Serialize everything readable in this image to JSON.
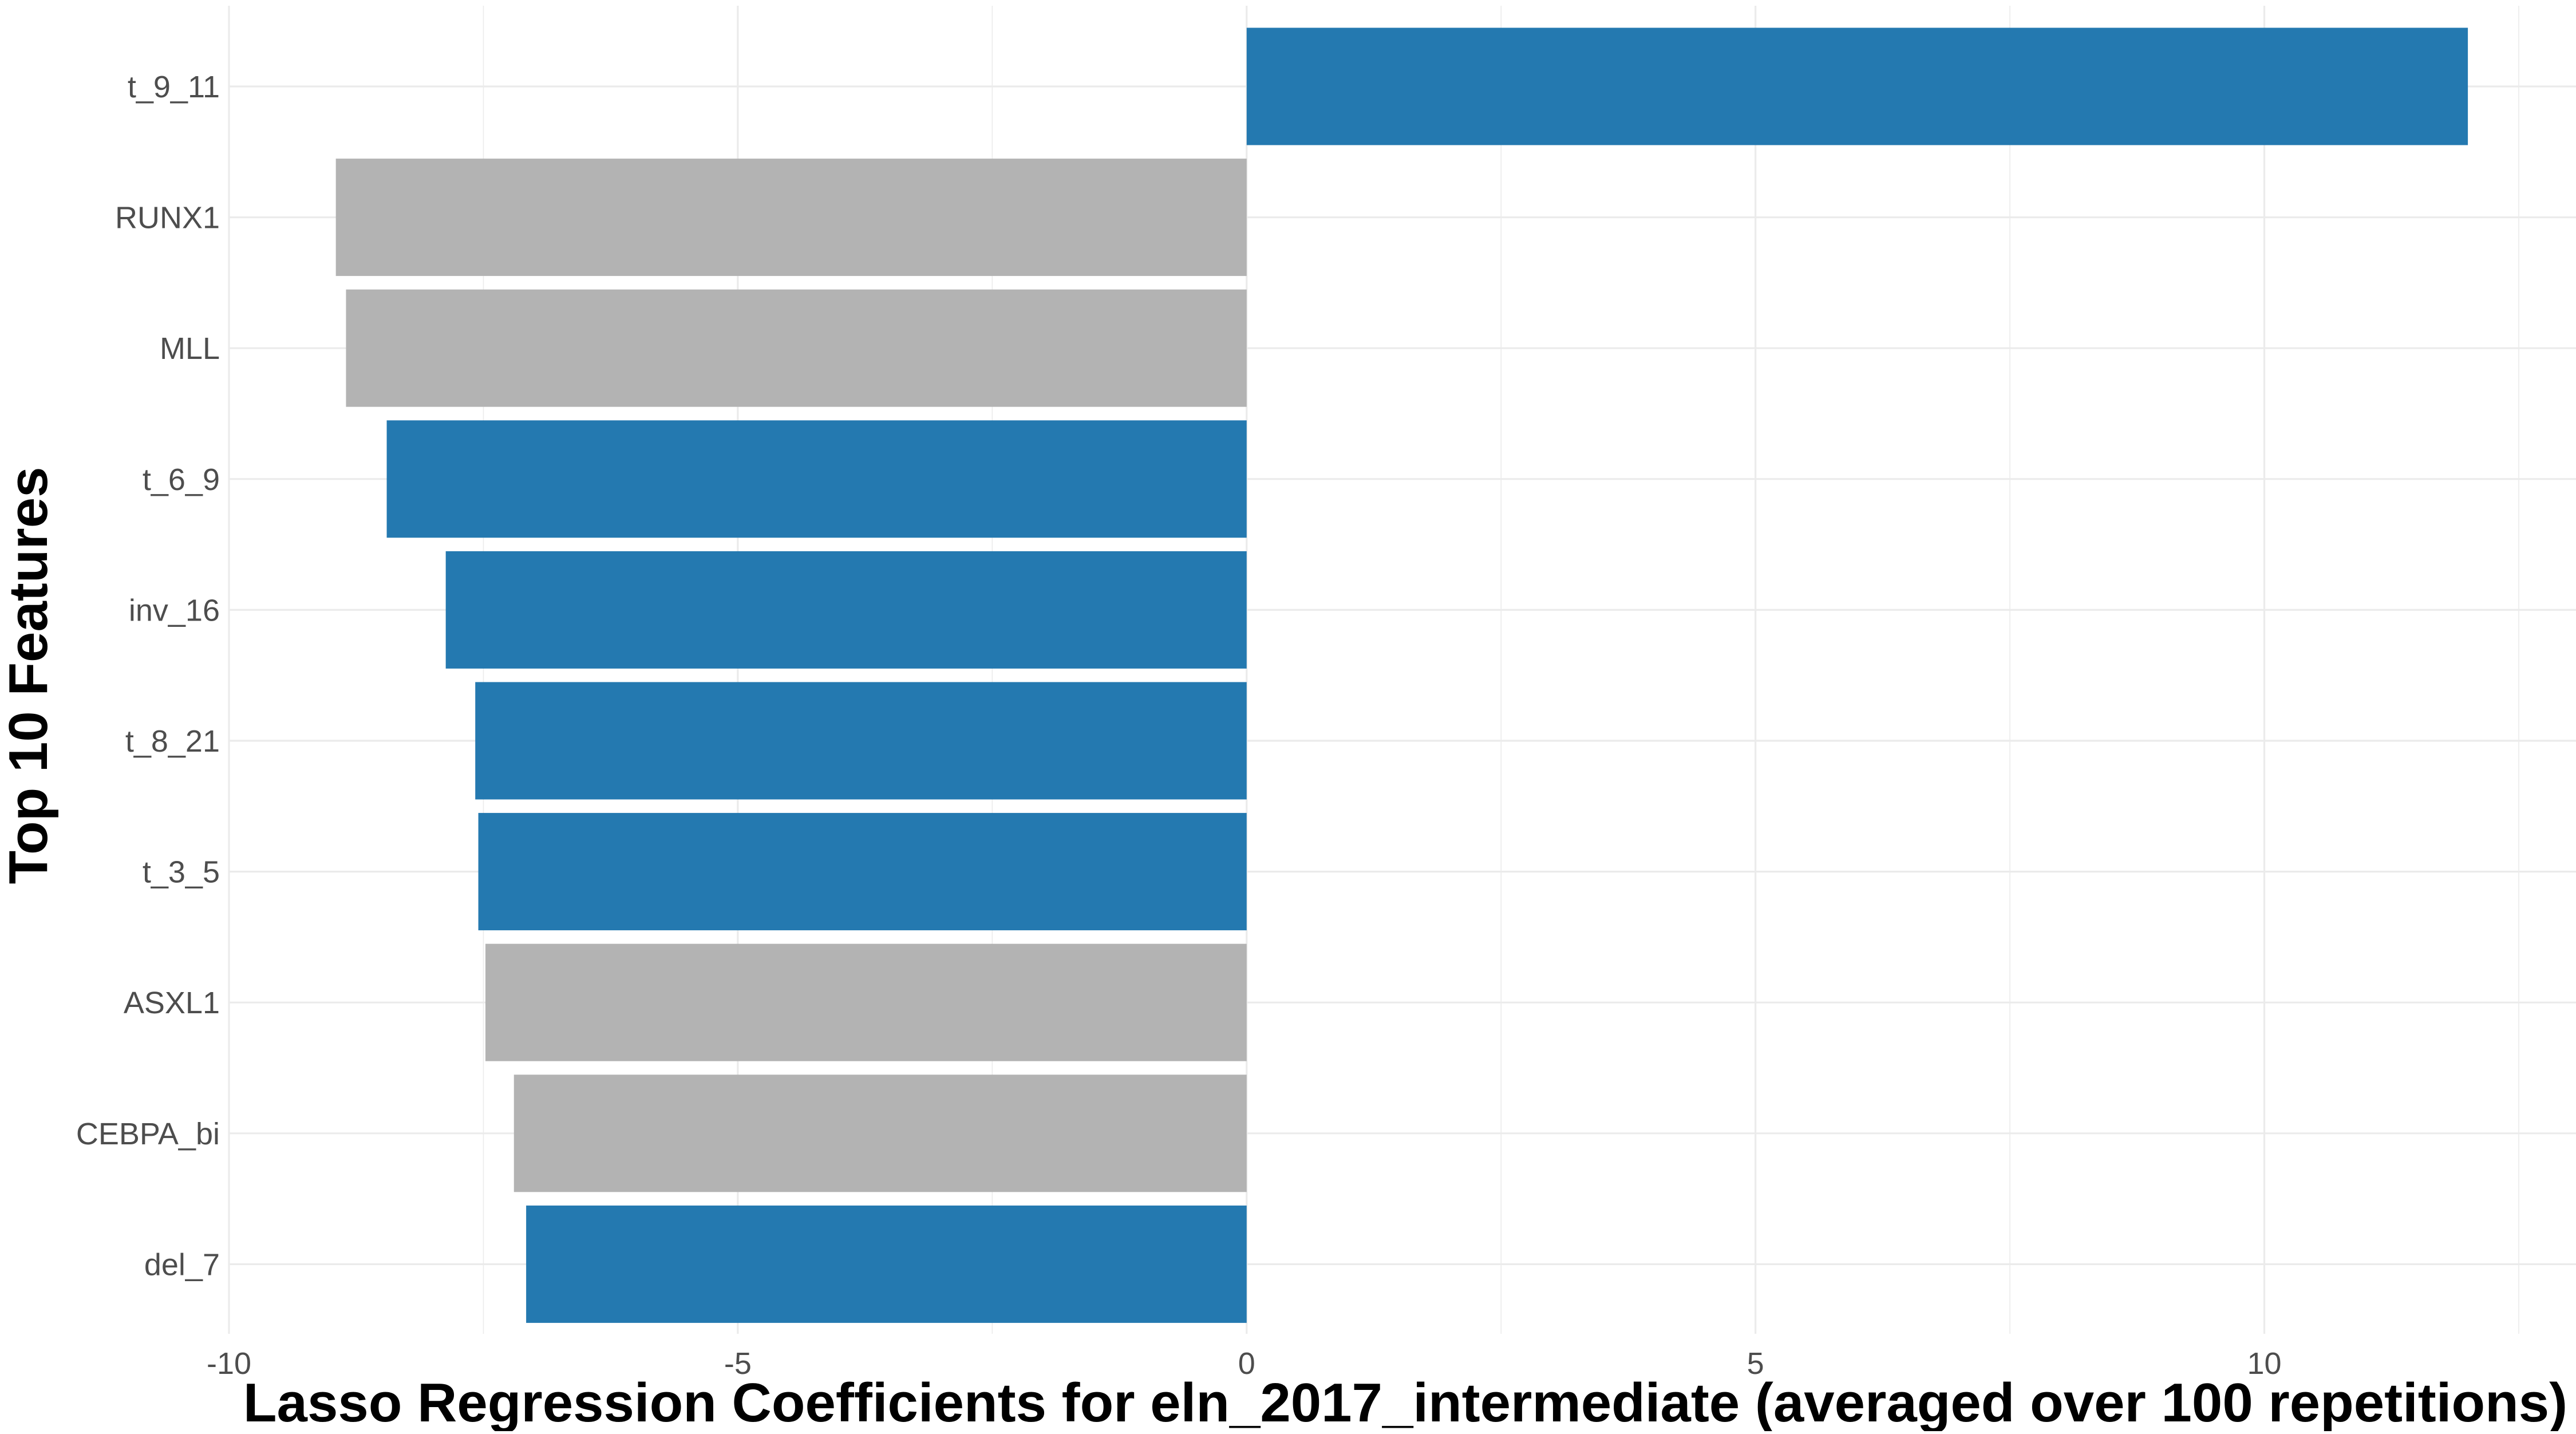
{
  "chart_data": {
    "type": "bar",
    "orientation": "horizontal",
    "xlabel": "Lasso Regression Coefficients for eln_2017_intermediate (averaged over 100 repetitions)",
    "ylabel": "Top 10 Features",
    "xlim": [
      -10,
      12.5
    ],
    "xticks": [
      -10,
      -5,
      0,
      5,
      10
    ],
    "xtick_labels": [
      "-10",
      "-5",
      "0",
      "5",
      "10"
    ],
    "grid": true,
    "legend": "none",
    "categories": [
      "t_9_11",
      "RUNX1",
      "MLL",
      "t_6_9",
      "inv_16",
      "t_8_21",
      "t_3_5",
      "ASXL1",
      "CEBPA_bi",
      "del_7"
    ],
    "values": [
      12.0,
      -8.95,
      -8.85,
      -8.45,
      -7.87,
      -7.58,
      -7.55,
      -7.48,
      -7.2,
      -7.08
    ],
    "bar_colors": [
      "#2479b0",
      "#b3b3b3",
      "#b3b3b3",
      "#2479b0",
      "#2479b0",
      "#2479b0",
      "#2479b0",
      "#b3b3b3",
      "#b3b3b3",
      "#2479b0"
    ],
    "colors": {
      "blue": "#2479b0",
      "gray": "#b3b3b3",
      "grid": "#ebebeb"
    }
  }
}
